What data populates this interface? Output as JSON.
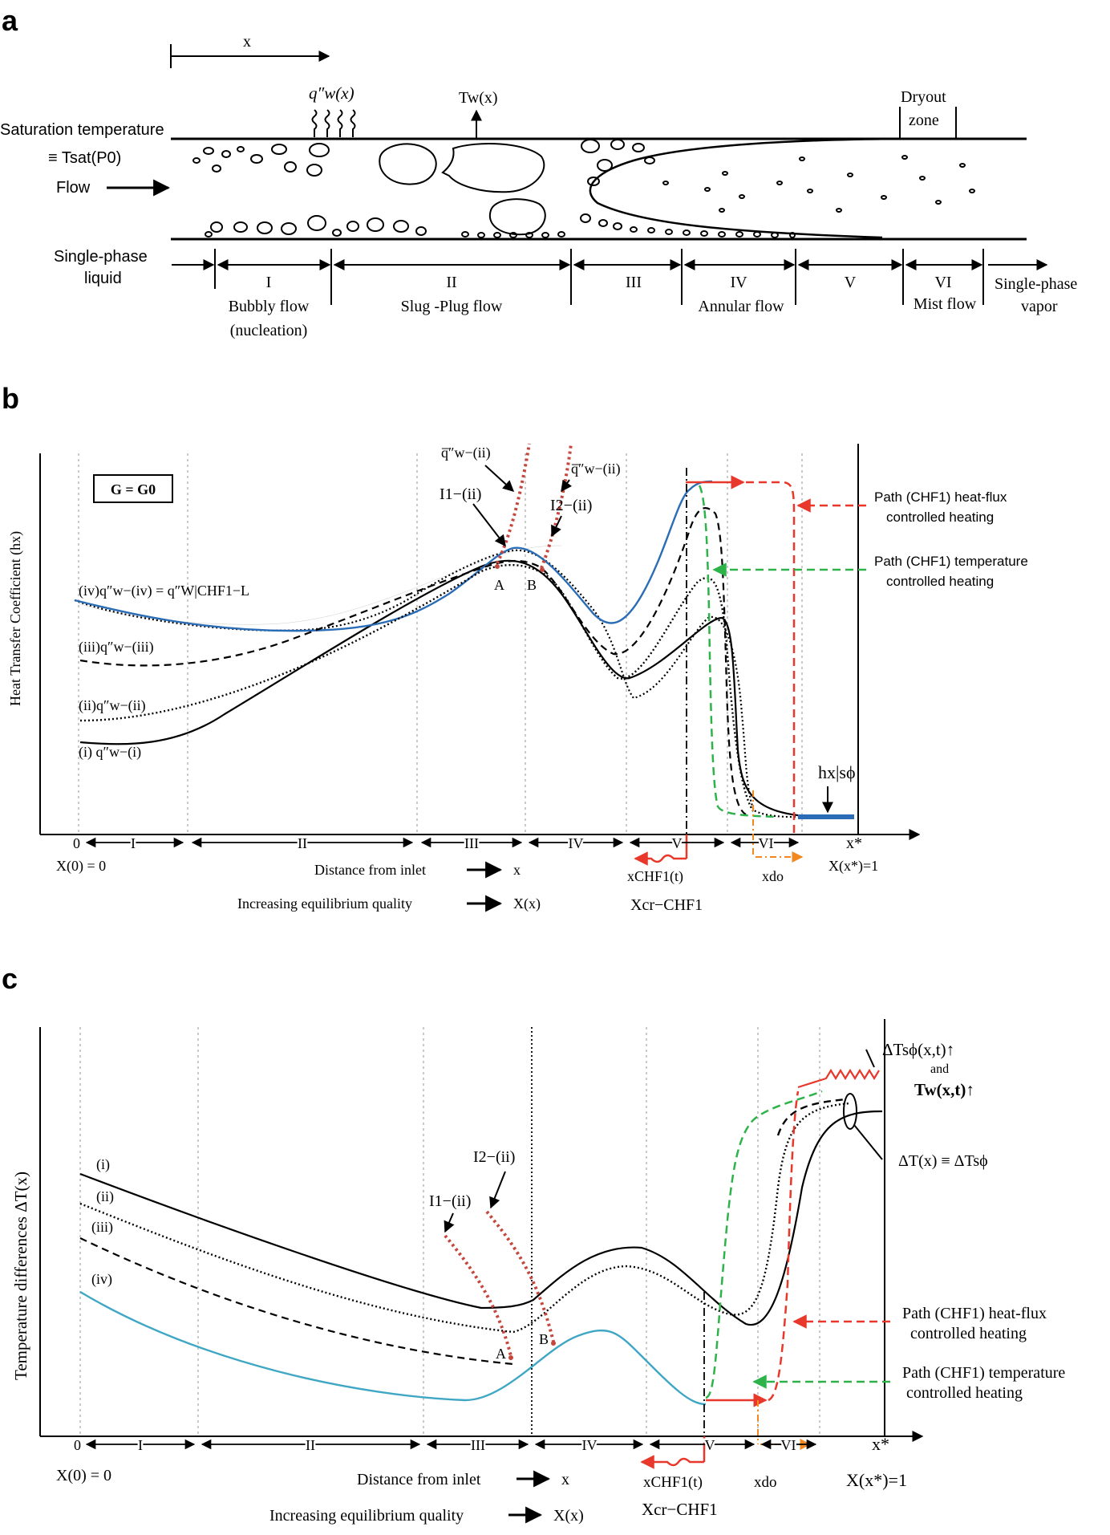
{
  "panel_a": {
    "label": "a",
    "x_label": "x",
    "heat_flux": "q″w(x)",
    "wall_temp": "Tw(x)",
    "dryout_line1": "Dryout",
    "dryout_line2": "zone",
    "sat_temp_line1": "Saturation temperature",
    "sat_temp_line2": "≡ Tsat(P0)",
    "flow": "Flow",
    "single_liquid_1": "Single-phase",
    "single_liquid_2": "liquid",
    "single_vapor_1": "Single-phase",
    "single_vapor_2": "vapor",
    "zones": [
      "I",
      "II",
      "III",
      "IV",
      "V",
      "VI"
    ],
    "regimes": {
      "bubbly_1": "Bubbly flow",
      "bubbly_2": "(nucleation)",
      "slug": "Slug -Plug flow",
      "annular": "Annular flow",
      "mist": "Mist flow"
    }
  },
  "panel_b": {
    "label": "b",
    "ylabel": "Heat Transfer Coefficient (hx)",
    "g_box": "G = G0",
    "curves": {
      "iv": "(iv)q″w−(iv) = q″W|CHF1−L",
      "iii": "(iii)q″w−(iii)",
      "ii": "(ii)q″w−(ii)",
      "i": "(i) q″w−(i)"
    },
    "qbar_1": "q̅″w−(ii)",
    "qbar_2": "q̅″w−(ii)",
    "i1": "I1−(ii)",
    "i2": "I2−(ii)",
    "point_a": "A",
    "point_b": "B",
    "path_flux_1": "Path (CHF1) heat-flux",
    "path_flux_2": "controlled heating",
    "path_temp_1": "Path (CHF1) temperature",
    "path_temp_2": "controlled heating",
    "h_sphi": "hx|sϕ",
    "x0": "0",
    "zones": [
      "I",
      "II",
      "III",
      "IV",
      "V",
      "VI"
    ],
    "x_star": "x*",
    "x_origin": "X(0) = 0",
    "x_end": "X(x*)=1",
    "distance": "Distance from inlet",
    "distance_sym": "x",
    "quality": "Increasing equilibrium quality",
    "quality_sym": "X(x)",
    "x_chf": "xCHF1(t)",
    "x_cr": "Xcr−CHF1",
    "x_do": "xdo"
  },
  "panel_c": {
    "label": "c",
    "ylabel": "Temperature differences ΔT(x)",
    "curves": [
      "(i)",
      "(ii)",
      "(iii)",
      "(iv)"
    ],
    "i1": "I1−(ii)",
    "i2": "I2−(ii)",
    "point_a": "A",
    "point_b": "B",
    "dt_sphi": "ΔTsϕ(x,t)↑",
    "and_word": "and",
    "tw": "Tw(x,t)↑",
    "dt_def": "ΔT(x) ≡ ΔTsϕ",
    "path_flux_1": "Path (CHF1) heat-flux",
    "path_flux_2": "controlled heating",
    "path_temp_1": "Path (CHF1) temperature",
    "path_temp_2": "controlled heating",
    "x0": "0",
    "zones": [
      "I",
      "II",
      "III",
      "IV",
      "V",
      "VI"
    ],
    "x_star": "x*",
    "x_origin": "X(0) = 0",
    "x_end": "X(x*)=1",
    "distance": "Distance from inlet",
    "distance_sym": "x",
    "quality": "Increasing equilibrium quality",
    "quality_sym": "X(x)",
    "x_chf": "xCHF1(t)",
    "x_cr": "Xcr−CHF1",
    "x_do": "xdo"
  },
  "colors": {
    "blue": "#2a6cb6",
    "teal": "#3fa7c4",
    "red_dash": "#e8372b",
    "dotted_red": "#c5463c",
    "green_dash": "#2eb34a",
    "orange": "#f2871f",
    "grid": "#b8b8b8"
  }
}
